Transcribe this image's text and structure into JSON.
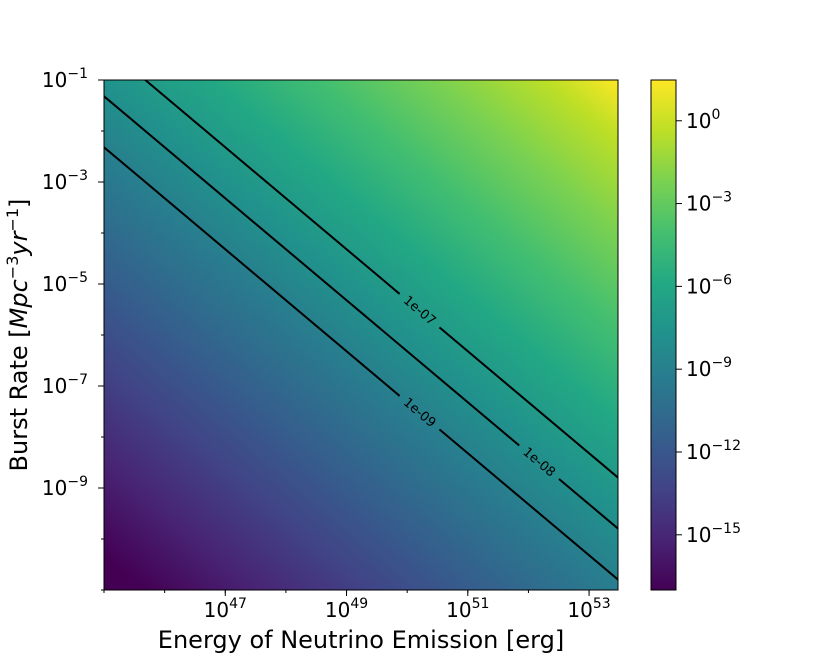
{
  "chart_data": {
    "type": "heatmap",
    "title": "",
    "xlabel": "Energy of Neutrino Emission [erg]",
    "ylabel_parts": [
      "Burst Rate [",
      "Mpc",
      "−3",
      "yr",
      "−1",
      "]"
    ],
    "x_scale": "log",
    "y_scale": "log",
    "xlim": [
      1e+45,
      3e+53
    ],
    "ylim": [
      1e-11,
      0.1
    ],
    "x_ticks": [
      {
        "value": 1e+47,
        "base": "10",
        "exp": "47"
      },
      {
        "value": 1e+49,
        "base": "10",
        "exp": "49"
      },
      {
        "value": 1e+51,
        "base": "10",
        "exp": "51"
      },
      {
        "value": 1e+53,
        "base": "10",
        "exp": "53"
      }
    ],
    "y_ticks": [
      {
        "value": 0.1,
        "base": "10",
        "exp": "−1"
      },
      {
        "value": 0.001,
        "base": "10",
        "exp": "−3"
      },
      {
        "value": 1e-05,
        "base": "10",
        "exp": "−5"
      },
      {
        "value": 1e-07,
        "base": "10",
        "exp": "−7"
      },
      {
        "value": 1e-09,
        "base": "10",
        "exp": "−9"
      }
    ],
    "field": "value proportional to energy × burst rate",
    "field_range": [
      1e-17,
      30.0
    ],
    "colormap": "viridis",
    "colorbar": {
      "scale": "log",
      "range": [
        1e-17,
        30.0
      ],
      "ticks": [
        {
          "value": 1,
          "base": "10",
          "exp": "0"
        },
        {
          "value": 0.001,
          "base": "10",
          "exp": "−3"
        },
        {
          "value": 1e-06,
          "base": "10",
          "exp": "−6"
        },
        {
          "value": 1e-09,
          "base": "10",
          "exp": "−9"
        },
        {
          "value": 1e-12,
          "base": "10",
          "exp": "−12"
        },
        {
          "value": 1e-15,
          "base": "10",
          "exp": "−15"
        }
      ]
    },
    "contours": [
      {
        "level": 1e-07,
        "label": "1e-07",
        "label_at_x": 1.6e+50,
        "color": "#000000"
      },
      {
        "level": 1e-08,
        "label": "1e-08",
        "label_at_x": 1.5e+52,
        "color": "#000000"
      },
      {
        "level": 1e-09,
        "label": "1e-09",
        "label_at_x": 1.6e+50,
        "color": "#000000"
      }
    ]
  }
}
